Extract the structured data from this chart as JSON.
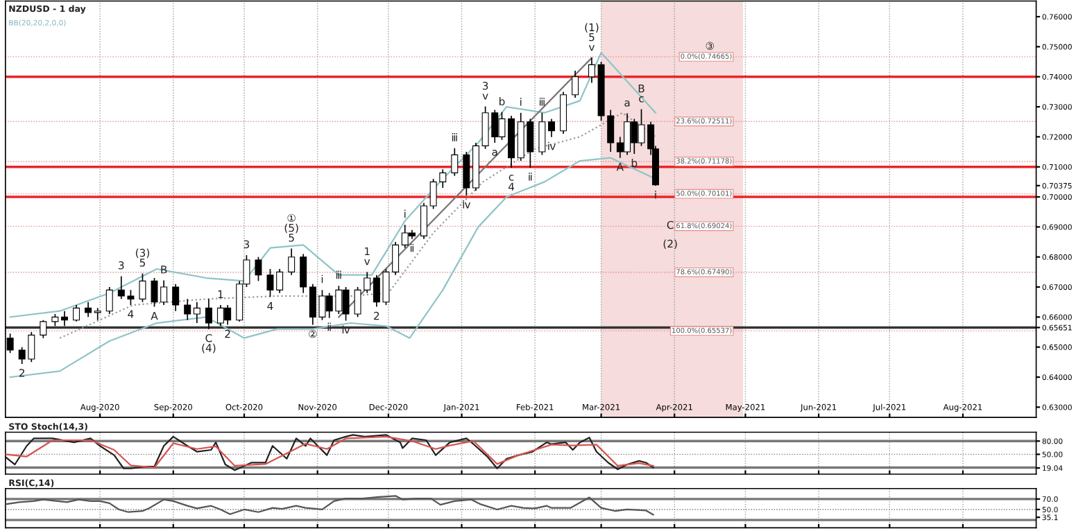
{
  "chart_data": [
    {
      "type": "candlestick",
      "title": "NZDUSD - 1 day",
      "subtitle": "BB(20,20,2,0,0)",
      "x": [
        "2020-06-24",
        "2020-06-29",
        "2020-07-03",
        "2020-07-08",
        "2020-07-13",
        "2020-07-17",
        "2020-07-22",
        "2020-07-27",
        "2020-07-31",
        "2020-08-05",
        "2020-08-10",
        "2020-08-14",
        "2020-08-19",
        "2020-08-24",
        "2020-08-28",
        "2020-09-02",
        "2020-09-07",
        "2020-09-11",
        "2020-09-16",
        "2020-09-21",
        "2020-09-24",
        "2020-09-29",
        "2020-10-02",
        "2020-10-07",
        "2020-10-12",
        "2020-10-16",
        "2020-10-21",
        "2020-10-26",
        "2020-10-30",
        "2020-11-03",
        "2020-11-06",
        "2020-11-10",
        "2020-11-13",
        "2020-11-18",
        "2020-11-22",
        "2020-11-26",
        "2020-11-30",
        "2020-12-04",
        "2020-12-08",
        "2020-12-11",
        "2020-12-16",
        "2020-12-20",
        "2020-12-24",
        "2020-12-29",
        "2021-01-03",
        "2021-01-07",
        "2021-01-11",
        "2021-01-15",
        "2021-01-18",
        "2021-01-22",
        "2021-01-26",
        "2021-01-30",
        "2021-02-04",
        "2021-02-08",
        "2021-02-13",
        "2021-02-18",
        "2021-02-25",
        "2021-03-01",
        "2021-03-05",
        "2021-03-09",
        "2021-03-12",
        "2021-03-15",
        "2021-03-18",
        "2021-03-22",
        "2021-03-24"
      ],
      "ohlc": [
        [
          0.653,
          0.6545,
          0.648,
          0.649
        ],
        [
          0.649,
          0.65,
          0.6444,
          0.646
        ],
        [
          0.646,
          0.655,
          0.645,
          0.654
        ],
        [
          0.654,
          0.659,
          0.653,
          0.6585
        ],
        [
          0.6585,
          0.661,
          0.657,
          0.66
        ],
        [
          0.66,
          0.662,
          0.657,
          0.659
        ],
        [
          0.659,
          0.664,
          0.6585,
          0.663
        ],
        [
          0.663,
          0.665,
          0.66,
          0.6615
        ],
        [
          0.6615,
          0.663,
          0.659,
          0.662
        ],
        [
          0.662,
          0.67,
          0.661,
          0.669
        ],
        [
          0.669,
          0.6736,
          0.666,
          0.667
        ],
        [
          0.667,
          0.669,
          0.664,
          0.666
        ],
        [
          0.666,
          0.6745,
          0.665,
          0.672
        ],
        [
          0.672,
          0.673,
          0.6634,
          0.665
        ],
        [
          0.665,
          0.6722,
          0.664,
          0.67
        ],
        [
          0.67,
          0.671,
          0.662,
          0.664
        ],
        [
          0.664,
          0.666,
          0.659,
          0.661
        ],
        [
          0.661,
          0.665,
          0.658,
          0.663
        ],
        [
          0.663,
          0.666,
          0.656,
          0.658
        ],
        [
          0.658,
          0.664,
          0.657,
          0.663
        ],
        [
          0.663,
          0.664,
          0.6574,
          0.659
        ],
        [
          0.659,
          0.672,
          0.6585,
          0.671
        ],
        [
          0.671,
          0.6806,
          0.67,
          0.679
        ],
        [
          0.679,
          0.68,
          0.672,
          0.674
        ],
        [
          0.674,
          0.676,
          0.6667,
          0.669
        ],
        [
          0.669,
          0.676,
          0.668,
          0.675
        ],
        [
          0.675,
          0.6828,
          0.674,
          0.68
        ],
        [
          0.68,
          0.681,
          0.668,
          0.67
        ],
        [
          0.67,
          0.671,
          0.6574,
          0.66
        ],
        [
          0.66,
          0.669,
          0.659,
          0.667
        ],
        [
          0.667,
          0.668,
          0.6597,
          0.662
        ],
        [
          0.662,
          0.6704,
          0.661,
          0.669
        ],
        [
          0.669,
          0.67,
          0.6588,
          0.661
        ],
        [
          0.661,
          0.67,
          0.66,
          0.669
        ],
        [
          0.669,
          0.675,
          0.668,
          0.673
        ],
        [
          0.673,
          0.674,
          0.6634,
          0.665
        ],
        [
          0.665,
          0.676,
          0.664,
          0.675
        ],
        [
          0.675,
          0.685,
          0.674,
          0.684
        ],
        [
          0.684,
          0.6907,
          0.683,
          0.688
        ],
        [
          0.688,
          0.689,
          0.686,
          0.687
        ],
        [
          0.687,
          0.698,
          0.686,
          0.697
        ],
        [
          0.697,
          0.706,
          0.696,
          0.705
        ],
        [
          0.705,
          0.7092,
          0.703,
          0.708
        ],
        [
          0.708,
          0.7162,
          0.707,
          0.714
        ],
        [
          0.714,
          0.715,
          0.7005,
          0.703
        ],
        [
          0.703,
          0.718,
          0.702,
          0.717
        ],
        [
          0.717,
          0.7301,
          0.716,
          0.728
        ],
        [
          0.728,
          0.729,
          0.718,
          0.72
        ],
        [
          0.72,
          0.7282,
          0.719,
          0.726
        ],
        [
          0.726,
          0.727,
          0.7097,
          0.713
        ],
        [
          0.713,
          0.728,
          0.712,
          0.725
        ],
        [
          0.725,
          0.726,
          0.7097,
          0.715
        ],
        [
          0.715,
          0.728,
          0.714,
          0.725
        ],
        [
          0.725,
          0.726,
          0.7199,
          0.722
        ],
        [
          0.722,
          0.735,
          0.721,
          0.734
        ],
        [
          0.734,
          0.742,
          0.733,
          0.74
        ],
        [
          0.74,
          0.7463,
          0.738,
          0.744
        ],
        [
          0.744,
          0.745,
          0.7254,
          0.727
        ],
        [
          0.727,
          0.729,
          0.715,
          0.718
        ],
        [
          0.718,
          0.72,
          0.713,
          0.715
        ],
        [
          0.715,
          0.7278,
          0.714,
          0.725
        ],
        [
          0.725,
          0.726,
          0.7143,
          0.718
        ],
        [
          0.718,
          0.7292,
          0.717,
          0.724
        ],
        [
          0.724,
          0.725,
          0.714,
          0.716
        ],
        [
          0.716,
          0.717,
          0.7037,
          0.704
        ]
      ],
      "series": [
        {
          "type": "line",
          "color": "#8fc4c8",
          "x": [
            "2020-06-24",
            "2020-07-15",
            "2020-08-05",
            "2020-08-25",
            "2020-09-15",
            "2020-10-01",
            "2020-10-12",
            "2020-10-26",
            "2020-11-10",
            "2020-11-24",
            "2020-12-08",
            "2020-12-24",
            "2021-01-08",
            "2021-01-20",
            "2021-02-05",
            "2021-02-20",
            "2021-03-01",
            "2021-03-24"
          ],
          "values": [
            0.66,
            0.662,
            0.668,
            0.676,
            0.673,
            0.672,
            0.683,
            0.684,
            0.674,
            0.674,
            0.692,
            0.706,
            0.718,
            0.73,
            0.728,
            0.732,
            0.748,
            0.728
          ]
        },
        {
          "type": "line",
          "color": "#8fc4c8",
          "x": [
            "2020-06-24",
            "2020-07-15",
            "2020-08-05",
            "2020-08-25",
            "2020-09-15",
            "2020-10-01",
            "2020-10-15",
            "2020-10-30",
            "2020-11-15",
            "2020-11-30",
            "2020-12-10",
            "2020-12-24",
            "2021-01-08",
            "2021-01-20",
            "2021-02-05",
            "2021-02-20",
            "2021-03-05",
            "2021-03-24"
          ],
          "values": [
            0.64,
            0.642,
            0.652,
            0.658,
            0.66,
            0.653,
            0.656,
            0.656,
            0.658,
            0.657,
            0.653,
            0.669,
            0.69,
            0.7,
            0.705,
            0.712,
            0.713,
            0.706
          ]
        },
        {
          "type": "line",
          "color": "#999999",
          "line_style": "dotted",
          "x": [
            "2020-07-15",
            "2020-08-15",
            "2020-09-15",
            "2020-10-15",
            "2020-11-15",
            "2020-12-01",
            "2020-12-20",
            "2021-01-10",
            "2021-02-01",
            "2021-02-20",
            "2021-03-10",
            "2021-03-24"
          ],
          "values": [
            0.653,
            0.664,
            0.666,
            0.667,
            0.667,
            0.668,
            0.688,
            0.705,
            0.716,
            0.72,
            0.728,
            0.72
          ]
        },
        {
          "type": "line",
          "color": "#777777",
          "x": [
            "2020-11-10",
            "2021-02-25"
          ],
          "values": [
            0.66,
            0.7463
          ]
        }
      ],
      "xlim": [
        "2020-06-22",
        "2021-09-01"
      ],
      "xticks": [
        {
          "value": "2020-08-01",
          "label": "Aug-2020"
        },
        {
          "value": "2020-09-01",
          "label": "Sep-2020"
        },
        {
          "value": "2020-10-01",
          "label": "Oct-2020"
        },
        {
          "value": "2020-11-01",
          "label": "Nov-2020"
        },
        {
          "value": "2020-12-01",
          "label": "Dec-2020"
        },
        {
          "value": "2021-01-01",
          "label": "Jan-2021"
        },
        {
          "value": "2021-02-01",
          "label": "Feb-2021"
        },
        {
          "value": "2021-03-01",
          "label": "Mar-2021"
        },
        {
          "value": "2021-04-01",
          "label": "Apr-2021"
        },
        {
          "value": "2021-05-01",
          "label": "May-2021"
        },
        {
          "value": "2021-06-01",
          "label": "Jun-2021"
        },
        {
          "value": "2021-07-01",
          "label": "Jul-2021"
        },
        {
          "value": "2021-08-01",
          "label": "Aug-2021"
        }
      ],
      "ylim": [
        0.6266,
        0.7652
      ],
      "yticks": [
        {
          "value": 0.63,
          "label": "0.63000"
        },
        {
          "value": 0.64,
          "label": "0.64000"
        },
        {
          "value": 0.65,
          "label": "0.65000"
        },
        {
          "value": 0.65651,
          "label": "0.65651"
        },
        {
          "value": 0.66,
          "label": "0.66000"
        },
        {
          "value": 0.67,
          "label": "0.67000"
        },
        {
          "value": 0.68,
          "label": "0.68000"
        },
        {
          "value": 0.69,
          "label": "0.69000"
        },
        {
          "value": 0.7,
          "label": "0.70000"
        },
        {
          "value": 0.70375,
          "label": "0.70375"
        },
        {
          "value": 0.71,
          "label": "0.71000"
        },
        {
          "value": 0.72,
          "label": "0.72000"
        },
        {
          "value": 0.73,
          "label": "0.73000"
        },
        {
          "value": 0.74,
          "label": "0.74000"
        },
        {
          "value": 0.75,
          "label": "0.75000"
        },
        {
          "value": 0.76,
          "label": "0.76000"
        }
      ],
      "grid": "x",
      "bands": [
        {
          "axis": "x",
          "from": "2021-03-01",
          "to": "2021-04-30",
          "color": "#f6dcdc"
        }
      ],
      "ref_lines": [
        {
          "axis": "y",
          "value": 0.74,
          "color": "#e8262a"
        },
        {
          "axis": "y",
          "value": 0.71,
          "color": "#e8262a"
        },
        {
          "axis": "y",
          "value": 0.7,
          "color": "#e8262a"
        },
        {
          "axis": "y",
          "value": 0.65651,
          "color": "#333333"
        },
        {
          "axis": "y",
          "value": 0.74665,
          "label": "0.0%(0.74665)",
          "color": "#e88a8a",
          "line_style": "dotted"
        },
        {
          "axis": "y",
          "value": 0.72511,
          "label": "23.6%(0.72511)",
          "color": "#e88a8a",
          "line_style": "dotted"
        },
        {
          "axis": "y",
          "value": 0.71178,
          "label": "38.2%(0.71178)",
          "color": "#e88a8a",
          "line_style": "dotted"
        },
        {
          "axis": "y",
          "value": 0.70101,
          "label": "50.0%(0.70101)",
          "color": "#e88a8a",
          "line_style": "dotted"
        },
        {
          "axis": "y",
          "value": 0.69024,
          "label": "61.8%(0.69024)",
          "color": "#e88a8a",
          "line_style": "dotted"
        },
        {
          "axis": "y",
          "value": 0.6749,
          "label": "78.6%(0.67490)",
          "color": "#e88a8a",
          "line_style": "dotted"
        },
        {
          "axis": "y",
          "value": 0.65537,
          "label": "100.0%(0.65537)",
          "color": "#e88a8a",
          "line_style": "dotted"
        }
      ],
      "annotations": [
        {
          "text": "2",
          "x": "2020-06-29",
          "y": 0.6444
        },
        {
          "text": "3",
          "x": "2020-08-10",
          "y": 0.6736
        },
        {
          "text": "4",
          "x": "2020-08-14",
          "y": 0.664
        },
        {
          "text": "(3)\n5",
          "x": "2020-08-19",
          "y": 0.6745
        },
        {
          "text": "A",
          "x": "2020-08-24",
          "y": 0.6634
        },
        {
          "text": "B",
          "x": "2020-08-28",
          "y": 0.6722
        },
        {
          "text": "1",
          "x": "2020-09-21",
          "y": 0.664
        },
        {
          "text": "2",
          "x": "2020-09-24",
          "y": 0.6574
        },
        {
          "text": "C\n(4)",
          "x": "2020-09-16",
          "y": 0.656
        },
        {
          "text": "3",
          "x": "2020-10-02",
          "y": 0.6806
        },
        {
          "text": "4",
          "x": "2020-10-12",
          "y": 0.6667
        },
        {
          "text": "①\n(5)\n5",
          "x": "2020-10-21",
          "y": 0.6828
        },
        {
          "text": "②",
          "x": "2020-10-30",
          "y": 0.6574
        },
        {
          "text": "ⅰ",
          "x": "2020-11-03",
          "y": 0.669
        },
        {
          "text": "ⅱ",
          "x": "2020-11-06",
          "y": 0.6597
        },
        {
          "text": "ⅲ",
          "x": "2020-11-10",
          "y": 0.6704
        },
        {
          "text": "ⅳ",
          "x": "2020-11-13",
          "y": 0.6588
        },
        {
          "text": "1\nⅴ",
          "x": "2020-11-22",
          "y": 0.675
        },
        {
          "text": "2",
          "x": "2020-11-26",
          "y": 0.6634
        },
        {
          "text": "ⅰ",
          "x": "2020-12-08",
          "y": 0.6907
        },
        {
          "text": "ⅱ",
          "x": "2020-12-11",
          "y": 0.686
        },
        {
          "text": "ⅲ",
          "x": "2020-12-29",
          "y": 0.7162
        },
        {
          "text": "ⅳ",
          "x": "2021-01-03",
          "y": 0.7005
        },
        {
          "text": "3\nⅴ",
          "x": "2021-01-11",
          "y": 0.7301
        },
        {
          "text": "a",
          "x": "2021-01-15",
          "y": 0.718
        },
        {
          "text": "b",
          "x": "2021-01-18",
          "y": 0.7282
        },
        {
          "text": "c\n4",
          "x": "2021-01-22",
          "y": 0.7097
        },
        {
          "text": "ⅰ",
          "x": "2021-01-26",
          "y": 0.728
        },
        {
          "text": "ⅱ",
          "x": "2021-01-30",
          "y": 0.7097
        },
        {
          "text": "ⅲ",
          "x": "2021-02-04",
          "y": 0.728
        },
        {
          "text": "ⅳ",
          "x": "2021-02-08",
          "y": 0.7199
        },
        {
          "text": "(1)\n5\nⅴ",
          "x": "2021-02-25",
          "y": 0.7463
        },
        {
          "text": "A",
          "x": "2021-03-09",
          "y": 0.713
        },
        {
          "text": "a",
          "x": "2021-03-12",
          "y": 0.7278
        },
        {
          "text": "b",
          "x": "2021-03-15",
          "y": 0.7143
        },
        {
          "text": "B\nc",
          "x": "2021-03-18",
          "y": 0.7292
        },
        {
          "text": "ⅰ",
          "x": "2021-03-24",
          "y": 0.7037
        },
        {
          "text": "③",
          "x": "2021-04-16",
          "y": 0.74665
        },
        "C",
        "(2)"
      ]
    },
    {
      "type": "line",
      "title": "STO Stoch(14,3)",
      "series": [
        {
          "color": "#222222",
          "x": [
            "2020-06-22",
            "2020-06-26",
            "2020-07-01",
            "2020-07-04",
            "2020-07-12",
            "2020-07-21",
            "2020-07-28",
            "2020-08-01",
            "2020-08-07",
            "2020-08-11",
            "2020-08-14",
            "2020-08-20",
            "2020-08-24",
            "2020-08-28",
            "2020-09-01",
            "2020-09-07",
            "2020-09-11",
            "2020-09-17",
            "2020-09-19",
            "2020-09-23",
            "2020-09-27",
            "2020-10-04",
            "2020-10-10",
            "2020-10-13",
            "2020-10-19",
            "2020-10-23",
            "2020-10-27",
            "2020-10-29",
            "2020-11-05",
            "2020-11-08",
            "2020-11-13",
            "2020-11-16",
            "2020-11-21",
            "2020-11-30",
            "2020-12-06",
            "2020-12-07",
            "2020-12-11",
            "2020-12-17",
            "2020-12-21",
            "2020-12-27",
            "2021-01-03",
            "2021-01-06",
            "2021-01-12",
            "2021-01-16",
            "2021-01-20",
            "2021-01-25",
            "2021-01-31",
            "2021-02-06",
            "2021-02-08",
            "2021-02-14",
            "2021-02-17",
            "2021-02-20",
            "2021-02-24",
            "2021-02-27",
            "2021-03-04",
            "2021-03-08",
            "2021-03-12",
            "2021-03-17",
            "2021-03-20",
            "2021-03-23"
          ],
          "values": [
            44,
            27,
            69,
            86,
            86,
            77,
            86,
            69,
            48,
            18,
            18,
            22,
            22,
            69,
            90,
            69,
            56,
            60,
            77,
            27,
            14,
            31,
            31,
            69,
            40,
            86,
            69,
            86,
            48,
            82,
            90,
            94,
            90,
            94,
            77,
            64,
            86,
            82,
            48,
            77,
            86,
            73,
            44,
            18,
            40,
            48,
            56,
            77,
            73,
            77,
            60,
            77,
            88,
            56,
            31,
            16,
            27,
            35,
            31,
            20
          ]
        },
        {
          "color": "#d9534f",
          "x": [
            "2020-06-22",
            "2020-07-01",
            "2020-07-12",
            "2020-07-28",
            "2020-08-07",
            "2020-08-14",
            "2020-08-24",
            "2020-09-01",
            "2020-09-11",
            "2020-09-19",
            "2020-09-27",
            "2020-10-10",
            "2020-10-19",
            "2020-10-27",
            "2020-11-05",
            "2020-11-13",
            "2020-11-30",
            "2020-12-11",
            "2020-12-21",
            "2020-12-27",
            "2021-01-06",
            "2021-01-16",
            "2021-01-25",
            "2021-02-08",
            "2021-02-17",
            "2021-02-27",
            "2021-03-08",
            "2021-03-17",
            "2021-03-23"
          ],
          "values": [
            50,
            45,
            82,
            82,
            60,
            25,
            20,
            75,
            62,
            68,
            24,
            28,
            52,
            74,
            62,
            86,
            90,
            80,
            62,
            70,
            80,
            28,
            48,
            72,
            70,
            72,
            24,
            30,
            24
          ]
        }
      ],
      "xlim": [
        "2020-06-22",
        "2021-09-01"
      ],
      "xticks": [
        "2020-08-01",
        "2020-09-01",
        "2020-10-01",
        "2020-11-01",
        "2020-12-01",
        "2021-01-01",
        "2021-02-01",
        "2021-03-01",
        "2021-04-01",
        "2021-05-01",
        "2021-06-01",
        "2021-07-01",
        "2021-08-01"
      ],
      "ylim": [
        5,
        100
      ],
      "yticks": [
        {
          "value": 19.04,
          "label": "19.04"
        },
        {
          "value": 50,
          "label": "50.00"
        },
        {
          "value": 80,
          "label": "80.00"
        }
      ],
      "tick_labels": "y",
      "grid": "x",
      "ref_lines": [
        {
          "axis": "y",
          "value": 80,
          "color": "#777777"
        },
        {
          "axis": "y",
          "value": 50,
          "color": "#777777",
          "line_style": "dotted"
        },
        {
          "axis": "y",
          "value": 20,
          "color": "#777777"
        }
      ]
    },
    {
      "type": "line",
      "title": "RSI(C,14)",
      "series": [
        {
          "color": "#555555",
          "x": [
            "2020-06-22",
            "2020-06-28",
            "2020-07-04",
            "2020-07-08",
            "2020-07-12",
            "2020-07-18",
            "2020-07-23",
            "2020-07-28",
            "2020-08-01",
            "2020-08-05",
            "2020-08-09",
            "2020-08-13",
            "2020-08-19",
            "2020-08-22",
            "2020-08-28",
            "2020-09-01",
            "2020-09-07",
            "2020-09-11",
            "2020-09-17",
            "2020-09-21",
            "2020-09-25",
            "2020-10-01",
            "2020-10-07",
            "2020-10-13",
            "2020-10-17",
            "2020-10-23",
            "2020-10-27",
            "2020-11-03",
            "2020-11-08",
            "2020-11-13",
            "2020-11-20",
            "2020-11-27",
            "2020-12-04",
            "2020-12-07",
            "2020-12-13",
            "2020-12-19",
            "2020-12-23",
            "2020-12-29",
            "2021-01-05",
            "2021-01-09",
            "2021-01-16",
            "2021-01-22",
            "2021-01-27",
            "2021-02-01",
            "2021-02-06",
            "2021-02-08",
            "2021-02-16",
            "2021-02-24",
            "2021-03-01",
            "2021-03-07",
            "2021-03-12",
            "2021-03-20",
            "2021-03-23"
          ],
          "values": [
            60,
            64,
            66,
            69,
            67,
            64,
            69,
            66,
            66,
            62,
            50,
            45,
            47,
            53,
            69,
            66,
            57,
            52,
            57,
            50,
            41,
            50,
            45,
            53,
            51,
            57,
            53,
            50,
            66,
            71,
            71,
            74,
            76,
            69,
            71,
            71,
            59,
            66,
            69,
            60,
            50,
            57,
            53,
            52,
            57,
            53,
            53,
            73,
            53,
            47,
            50,
            48,
            40
          ]
        }
      ],
      "xlim": [
        "2020-06-22",
        "2021-09-01"
      ],
      "xticks": [
        "2020-08-01",
        "2020-09-01",
        "2020-10-01",
        "2020-11-01",
        "2020-12-01",
        "2021-01-01",
        "2021-02-01",
        "2021-03-01",
        "2021-04-01",
        "2021-05-01",
        "2021-06-01",
        "2021-07-01",
        "2021-08-01"
      ],
      "ylim": [
        15,
        90
      ],
      "yticks": [
        {
          "value": 35.1,
          "label": "35.1"
        },
        {
          "value": 50,
          "label": "50.0"
        },
        {
          "value": 70,
          "label": "70.0"
        }
      ],
      "tick_labels": "y",
      "grid": "x",
      "ref_lines": [
        {
          "axis": "y",
          "value": 70,
          "color": "#777777"
        },
        {
          "axis": "y",
          "value": 50,
          "color": "#777777",
          "line_style": "dotted"
        },
        {
          "axis": "y",
          "value": 30,
          "color": "#777777"
        }
      ]
    }
  ]
}
